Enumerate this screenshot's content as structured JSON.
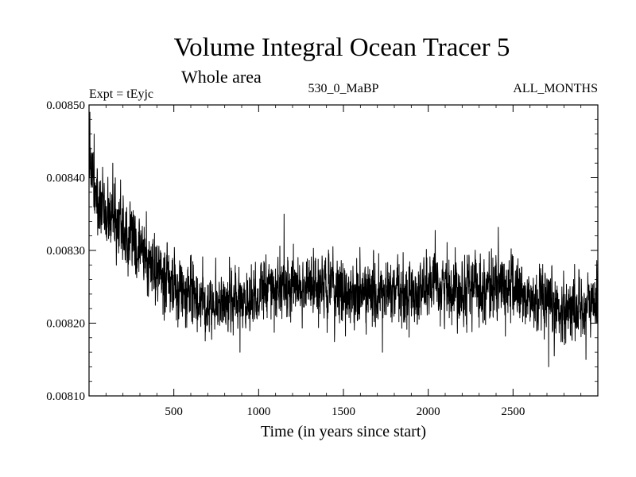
{
  "chart_data": {
    "type": "line",
    "title": "Volume Integral Ocean Tracer 5",
    "subtitle": "Whole area",
    "experiment": "Expt = tEyjc",
    "run_label": "530_0_MaBP",
    "season_label": "ALL_MONTHS",
    "xlabel": "Time (in years since start)",
    "ylabel": "",
    "xlim": [
      0,
      3000
    ],
    "ylim": [
      0.0081,
      0.0085
    ],
    "x_ticks": [
      500,
      1000,
      1500,
      2000,
      2500
    ],
    "x_tick_labels": [
      "500",
      "1000",
      "1500",
      "2000",
      "2500"
    ],
    "y_ticks": [
      0.0081,
      0.0082,
      0.0083,
      0.0084,
      0.0085
    ],
    "y_tick_labels": [
      "0.00810",
      "0.00820",
      "0.00830",
      "0.00840",
      "0.00850"
    ],
    "series": [
      {
        "name": "Tracer 5 volume integral",
        "color": "#000000",
        "trend": [
          [
            0,
            0.0084
          ],
          [
            100,
            0.00836
          ],
          [
            200,
            0.00833
          ],
          [
            300,
            0.0083
          ],
          [
            400,
            0.00827
          ],
          [
            500,
            0.00825
          ],
          [
            600,
            0.00824
          ],
          [
            700,
            0.00823
          ],
          [
            800,
            0.00823
          ],
          [
            900,
            0.00823
          ],
          [
            1000,
            0.00824
          ],
          [
            1100,
            0.00825
          ],
          [
            1200,
            0.00825
          ],
          [
            1300,
            0.00825
          ],
          [
            1400,
            0.00825
          ],
          [
            1500,
            0.00824
          ],
          [
            1600,
            0.00824
          ],
          [
            1700,
            0.00824
          ],
          [
            1800,
            0.00824
          ],
          [
            1900,
            0.00824
          ],
          [
            2000,
            0.00825
          ],
          [
            2100,
            0.00825
          ],
          [
            2200,
            0.00825
          ],
          [
            2300,
            0.00825
          ],
          [
            2400,
            0.00825
          ],
          [
            2500,
            0.00825
          ],
          [
            2600,
            0.00823
          ],
          [
            2700,
            0.00822
          ],
          [
            2800,
            0.00822
          ],
          [
            2900,
            0.00822
          ],
          [
            3000,
            0.00823
          ]
        ],
        "noise_amplitude": 5.5e-05,
        "notable_points": [
          [
            5,
            0.00849
          ],
          [
            30,
            0.00846
          ],
          [
            140,
            0.00842
          ],
          [
            1150,
            0.00835
          ],
          [
            890,
            0.00816
          ],
          [
            1730,
            0.00816
          ],
          [
            2710,
            0.00814
          ],
          [
            2930,
            0.00815
          ]
        ]
      }
    ]
  }
}
